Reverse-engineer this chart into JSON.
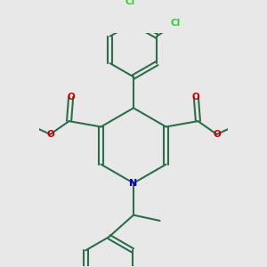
{
  "bg_color": "#e8e8e8",
  "bond_color": "#2d6e4e",
  "n_color": "#0000cc",
  "o_color": "#cc0000",
  "cl_color": "#33cc33",
  "line_width": 1.5,
  "fig_size": [
    3.0,
    3.0
  ],
  "dpi": 100,
  "xlim": [
    -2.5,
    2.5
  ],
  "ylim": [
    -3.2,
    3.0
  ]
}
